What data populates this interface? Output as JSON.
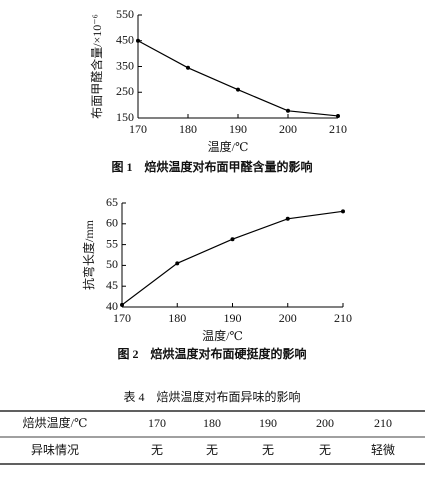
{
  "chart_data": [
    {
      "type": "line",
      "y_label": "布面甲醛含量/×10⁻⁶",
      "x_label": "温度/℃",
      "caption": "图 1　焙烘温度对布面甲醛含量的影响",
      "x": [
        170,
        180,
        190,
        200,
        210
      ],
      "values": [
        450,
        345,
        260,
        178,
        158
      ],
      "color": "#000000",
      "xlim": [
        170,
        210
      ],
      "xticks": [
        170,
        180,
        190,
        200,
        210
      ],
      "ylim": [
        150,
        550
      ],
      "yticks": [
        150,
        250,
        350,
        450,
        550
      ]
    },
    {
      "type": "line",
      "y_label": "抗弯长度/mm",
      "x_label": "温度/℃",
      "caption": "图 2　焙烘温度对布面硬挺度的影响",
      "x": [
        170,
        180,
        190,
        200,
        210
      ],
      "values": [
        40.5,
        50.5,
        56.3,
        61.2,
        63
      ],
      "color": "#000000",
      "xlim": [
        170,
        210
      ],
      "xticks": [
        170,
        180,
        190,
        200,
        210
      ],
      "ylim": [
        40,
        65
      ],
      "yticks": [
        40,
        45,
        50,
        55,
        60,
        65
      ]
    }
  ],
  "table": {
    "title": "表 4　焙烘温度对布面异味的影响",
    "rows": [
      [
        "焙烘温度/℃",
        "170",
        "180",
        "190",
        "200",
        "210"
      ],
      [
        "异味情况",
        "无",
        "无",
        "无",
        "无",
        "轻微"
      ]
    ]
  }
}
